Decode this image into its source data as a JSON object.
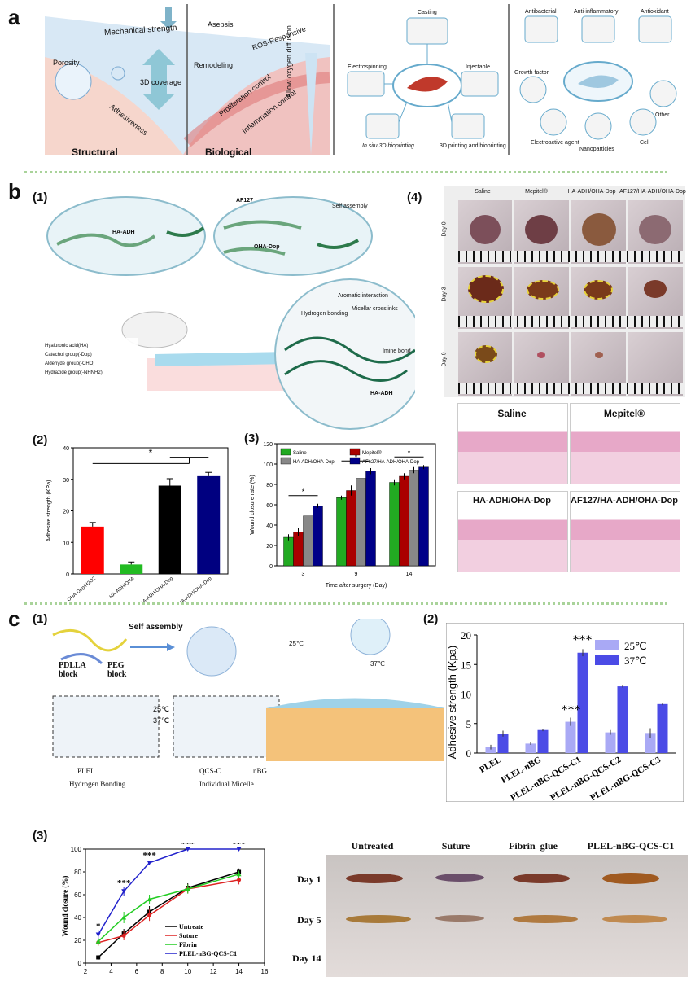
{
  "panels": {
    "a": "a",
    "b": "b",
    "c": "c",
    "b1": "(1)",
    "b2": "(2)",
    "b3": "(3)",
    "b4": "(4)",
    "c1": "(1)",
    "c2": "(2)",
    "c3": "(3)"
  },
  "a": {
    "structural": "Structural",
    "biological": "Biological",
    "mechanical": "Mechanical strength",
    "porosity": "Porosity",
    "coverage": "3D coverage",
    "adhesiveness": "Adhesiveness",
    "remodeling": "Remodeling",
    "proliferation": "Proliferation control",
    "inflammation": "Inflammation control",
    "asepsis": "Asepsis",
    "ros": "ROS-Responsive",
    "oxygen": "Allow oxygen diffusion",
    "methods": [
      "Casting",
      "Electrospinning",
      "Injectable",
      "In situ 3D bioprinting",
      "3D printing and bioprinting"
    ],
    "functions": [
      "Antibacterial",
      "Anti-inflammatory",
      "Antioxidant",
      "Growth factor",
      "Other",
      "Electroactive agent",
      "Nanoparticles",
      "Cell"
    ]
  },
  "b1": {
    "ha_adh": "HA-ADH",
    "af127": "AF127",
    "oha_dop": "OHA-Dop",
    "ha_adh2": "HA-ADH",
    "self_assembly": "Self assembly",
    "hydrogen": "Hydrogen bonding",
    "micellar": "Micellar crosslinks",
    "aromatic": "Aromatic interaction",
    "imine": "Imine bond",
    "legend": [
      "Hyaluronic acid(HA)",
      "Catechol group(-Dop)",
      "Aldehyde group(-CHO)",
      "Hydrazide group(-NHNH2)"
    ]
  },
  "b4": {
    "groups": [
      "Saline",
      "Mepitel®",
      "HA-ADH/OHA-Dop",
      "AF127/HA-ADH/OHA-Dop"
    ],
    "days": [
      "Day 0",
      "Day 3",
      "Day 9"
    ],
    "histo": [
      "Saline",
      "Mepitel®",
      "HA-ADH/OHA-Dop",
      "AF127/HA-ADH/OHA-Dop"
    ]
  },
  "c1": {
    "self_assembly": "Self assembly",
    "pdlla": "PDLLA block",
    "peg": "PEG block",
    "t25": "25℃",
    "t37": "37℃",
    "temp25": "25℃",
    "temp37": "37℃",
    "legend": [
      "PLEL",
      "QCS-C",
      "nBG",
      "Hydrogen Bonding",
      "Individual Micelle"
    ]
  },
  "c3photos": {
    "groups": [
      "Untreated",
      "Suture",
      "Fibrin  glue",
      "PLEL-nBG-QCS-C1"
    ],
    "days": [
      "Day 1",
      "Day 5",
      "Day 14"
    ]
  },
  "chart_data": [
    {
      "id": "b2",
      "type": "bar",
      "categories": [
        "OHA-Dop/H2O2",
        "HA-ADH/OHA",
        "HA-ADH/OHA-Dop",
        "AF127/HA-ADH/OHA-Dop"
      ],
      "values": [
        15,
        3,
        28,
        31
      ],
      "errors": [
        1.3,
        0.8,
        2.2,
        1.2
      ],
      "colors": [
        "#ff0000",
        "#22bb22",
        "#000000",
        "#000080"
      ],
      "ylabel": "Adhesive strength (KPa)",
      "ylim": [
        0,
        40
      ],
      "yticks": [
        0,
        10,
        20,
        30,
        40
      ],
      "annotation": "*"
    },
    {
      "id": "b3",
      "type": "bar",
      "categories": [
        "3",
        "9",
        "14"
      ],
      "series": [
        {
          "name": "Saline",
          "color": "#22aa22",
          "values": [
            28,
            67,
            82
          ],
          "errors": [
            3,
            2,
            3
          ]
        },
        {
          "name": "Mepitel®",
          "color": "#aa0000",
          "values": [
            33,
            74,
            88
          ],
          "errors": [
            4,
            5,
            3
          ]
        },
        {
          "name": "HA-ADH/OHA-Dop",
          "color": "#888888",
          "values": [
            49,
            86,
            94
          ],
          "errors": [
            4,
            3,
            3
          ]
        },
        {
          "name": "AF127/HA-ADH/OHA-Dop",
          "color": "#000088",
          "values": [
            59,
            93,
            97
          ],
          "errors": [
            2,
            3,
            2
          ]
        }
      ],
      "xlabel": "Time after surgery (Day)",
      "ylabel": "Wound closure rate (%)",
      "ylim": [
        0,
        120
      ],
      "yticks": [
        0,
        20,
        40,
        60,
        80,
        100,
        120
      ],
      "annotation": "*"
    },
    {
      "id": "c2",
      "type": "bar",
      "categories": [
        "PLEL",
        "PLEL-nBG",
        "PLEL-nBG-QCS-C1",
        "PLEL-nBG-QCS-C2",
        "PLEL-nBG-QCS-C3"
      ],
      "series": [
        {
          "name": "25℃",
          "color": "#a9a9f5",
          "values": [
            1.0,
            1.6,
            5.3,
            3.5,
            3.4
          ],
          "errors": [
            0.4,
            0.2,
            0.7,
            0.4,
            0.8
          ]
        },
        {
          "name": "37℃",
          "color": "#4b4be6",
          "values": [
            3.3,
            3.9,
            17.0,
            11.3,
            8.3
          ],
          "errors": [
            0.5,
            0.2,
            0.6,
            0.2,
            0.2
          ]
        }
      ],
      "ylabel": "Adhesive strength (Kpa)",
      "ylim": [
        0,
        20
      ],
      "yticks": [
        0,
        5,
        10,
        15,
        20
      ],
      "annotation": "***"
    },
    {
      "id": "c3",
      "type": "line",
      "xlabel": "",
      "ylabel": "Wound closure (%)",
      "xlim": [
        2,
        16
      ],
      "xticks": [
        2,
        4,
        6,
        8,
        10,
        12,
        14,
        16
      ],
      "ylim": [
        0,
        100
      ],
      "yticks": [
        0,
        20,
        40,
        60,
        80,
        100
      ],
      "series": [
        {
          "name": "Untreate",
          "color": "#000000",
          "marker": "square",
          "x": [
            3,
            5,
            7,
            10,
            14
          ],
          "y": [
            5,
            26,
            45,
            66,
            80
          ],
          "errors": [
            2,
            4,
            5,
            4,
            3
          ]
        },
        {
          "name": "Suture",
          "color": "#dd2222",
          "marker": "circle",
          "x": [
            3,
            5,
            7,
            10,
            14
          ],
          "y": [
            18,
            24,
            42,
            65,
            73
          ],
          "errors": [
            3,
            4,
            5,
            4,
            4
          ]
        },
        {
          "name": "Fibrin",
          "color": "#22cc22",
          "marker": "triangle-up",
          "x": [
            3,
            5,
            7,
            10,
            14
          ],
          "y": [
            19,
            40,
            56,
            65,
            78
          ],
          "errors": [
            3,
            5,
            4,
            4,
            3
          ]
        },
        {
          "name": "PLEL-nBG-QCS-C1",
          "color": "#2222cc",
          "marker": "triangle-down",
          "x": [
            3,
            5,
            7,
            10,
            14
          ],
          "y": [
            25,
            63,
            88,
            100,
            100
          ],
          "errors": [
            4,
            4,
            2,
            0,
            0
          ]
        }
      ],
      "annotations": [
        {
          "x": 3,
          "y": 30,
          "text": "*"
        },
        {
          "x": 5,
          "y": 68,
          "text": "***"
        },
        {
          "x": 7,
          "y": 92,
          "text": "***"
        },
        {
          "x": 10,
          "y": 102,
          "text": "***"
        },
        {
          "x": 14,
          "y": 102,
          "text": "***"
        }
      ]
    }
  ]
}
